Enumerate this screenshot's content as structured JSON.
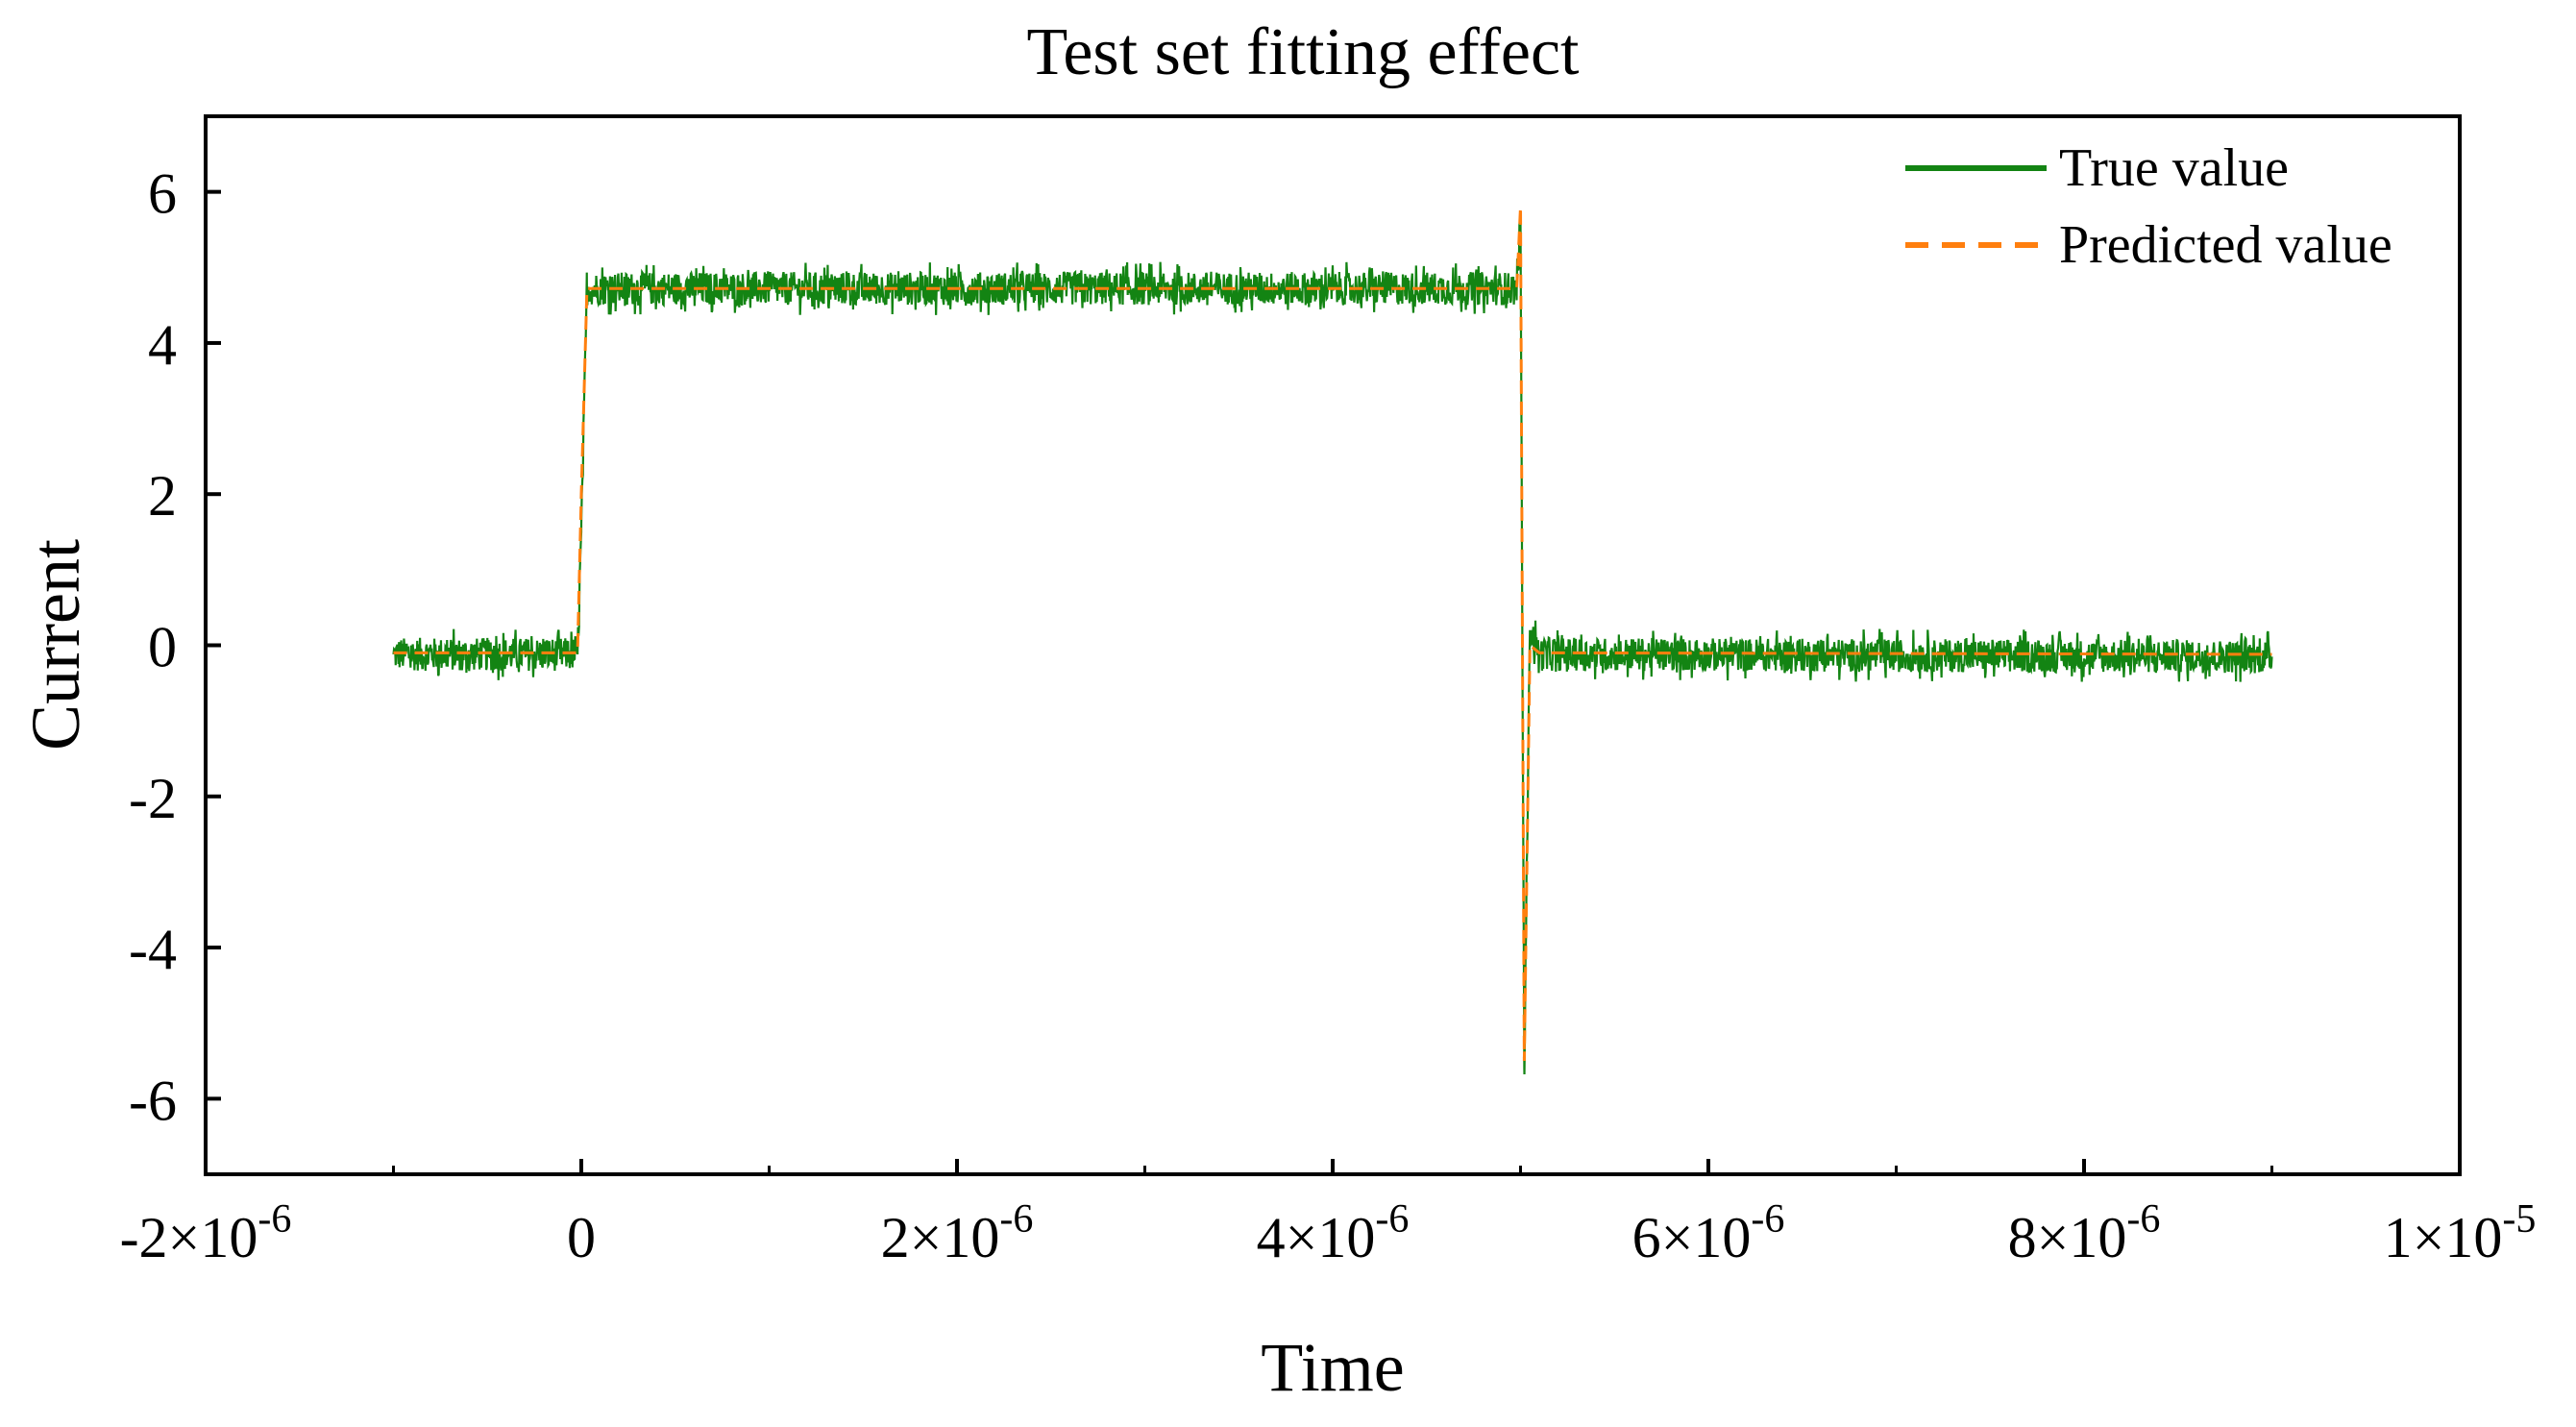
{
  "chart_data": {
    "type": "line",
    "title": "Test set fitting effect",
    "xlabel": "Time",
    "ylabel": "Current",
    "xlim": [
      -2e-06,
      1e-05
    ],
    "ylim": [
      -7,
      7
    ],
    "x_ticks": [
      {
        "value": -2e-06,
        "mantissa": "-2",
        "base": "×10",
        "exp": "-6"
      },
      {
        "value": 0,
        "mantissa": "0",
        "base": "",
        "exp": ""
      },
      {
        "value": 2e-06,
        "mantissa": "2",
        "base": "×10",
        "exp": "-6"
      },
      {
        "value": 4e-06,
        "mantissa": "4",
        "base": "×10",
        "exp": "-6"
      },
      {
        "value": 6e-06,
        "mantissa": "6",
        "base": "×10",
        "exp": "-6"
      },
      {
        "value": 8e-06,
        "mantissa": "8",
        "base": "×10",
        "exp": "-6"
      },
      {
        "value": 1e-05,
        "mantissa": "1",
        "base": "×10",
        "exp": "-5"
      }
    ],
    "y_ticks": [
      6,
      4,
      2,
      0,
      -2,
      -4,
      -6
    ],
    "legend_position": "top-right",
    "series": [
      {
        "name": "True value",
        "style": "solid",
        "color": "#138413",
        "noise_amplitude": 0.22,
        "x": [
          -1e-06,
          -2e-08,
          0,
          3e-08,
          4.98e-06,
          5e-06,
          5.02e-06,
          5.05e-06,
          5.1e-06,
          5.2e-06,
          9e-06
        ],
        "y": [
          -0.12,
          -0.12,
          1.5,
          4.72,
          4.72,
          5.6,
          -5.6,
          0.2,
          -0.12,
          -0.12,
          -0.15
        ]
      },
      {
        "name": "Predicted value",
        "style": "dashed",
        "color": "#ff7f0e",
        "noise_amplitude": 0,
        "x": [
          -1e-06,
          -2e-08,
          0,
          3e-08,
          4.98e-06,
          5e-06,
          5.02e-06,
          5.05e-06,
          5.1e-06,
          9e-06
        ],
        "y": [
          -0.1,
          -0.1,
          2.0,
          4.72,
          4.72,
          5.8,
          -5.5,
          0.0,
          -0.1,
          -0.12
        ]
      }
    ]
  }
}
